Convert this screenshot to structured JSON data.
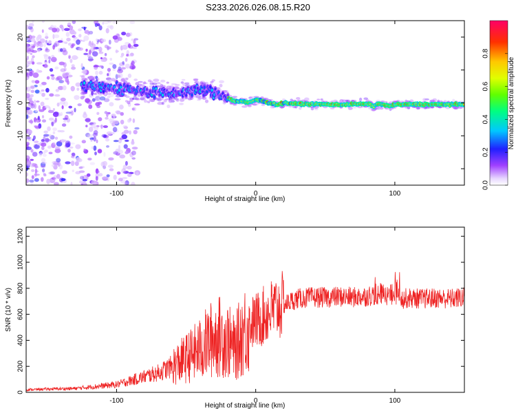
{
  "title": "S233.2026.026.08.15.R20",
  "colors": {
    "snr_line": "#ee2222",
    "axis": "#000000",
    "background": "#ffffff"
  },
  "chart_data": [
    {
      "type": "heatmap",
      "name": "spectrogram",
      "xlabel": "Height of straight line (km)",
      "ylabel": "Frequency (Hz)",
      "xlim": [
        -165,
        150
      ],
      "ylim": [
        -25,
        25
      ],
      "xticks": [
        -100,
        0,
        100
      ],
      "yticks": [
        -20,
        -10,
        0,
        10,
        20
      ],
      "ridge_frequency_track": {
        "height_km": [
          -120,
          -100,
          -80,
          -60,
          -45,
          -35,
          -25,
          -20,
          -15,
          -10,
          -5,
          0,
          5,
          10,
          15,
          20,
          30,
          60,
          80,
          85,
          88,
          92,
          96,
          100,
          120,
          150
        ],
        "frequency_hz": [
          5,
          4.5,
          3.5,
          2.5,
          4,
          3.5,
          2.5,
          1.5,
          0.5,
          0.5,
          0,
          1,
          0.5,
          0,
          -0.5,
          0,
          -0.3,
          -0.5,
          -0.3,
          -1,
          -0.3,
          -0.5,
          -1,
          -0.5,
          -0.4,
          -0.5
        ]
      },
      "colorbar": {
        "label": "Normalized spectral amplitude",
        "range": [
          0,
          1
        ],
        "ticks": [
          "0.0",
          "0.2",
          "0.4",
          "0.6",
          "0.8"
        ]
      }
    },
    {
      "type": "line",
      "name": "snr",
      "xlabel": "Height of straight line (km)",
      "ylabel": "SNR (10 * v/v)",
      "xlim": [
        -165,
        150
      ],
      "ylim": [
        0,
        1270
      ],
      "xticks": [
        -100,
        0,
        100
      ],
      "yticks": [
        0,
        200,
        400,
        600,
        800,
        1000,
        1200
      ],
      "series": [
        {
          "name": "SNR",
          "x": [
            -165,
            -150,
            -130,
            -115,
            -100,
            -90,
            -80,
            -70,
            -60,
            -50,
            -40,
            -35,
            -30,
            -25,
            -20,
            -15,
            -10,
            -5,
            0,
            5,
            10,
            15,
            20,
            25,
            30,
            40,
            50,
            60,
            70,
            80,
            85,
            90,
            95,
            100,
            102,
            105,
            110,
            120,
            130,
            140,
            150
          ],
          "values": [
            20,
            25,
            30,
            45,
            60,
            90,
            120,
            150,
            200,
            260,
            330,
            380,
            420,
            430,
            400,
            330,
            450,
            520,
            550,
            580,
            620,
            650,
            670,
            700,
            720,
            730,
            730,
            735,
            730,
            740,
            750,
            760,
            740,
            760,
            800,
            720,
            725,
            720,
            725,
            720,
            730
          ]
        }
      ]
    }
  ]
}
